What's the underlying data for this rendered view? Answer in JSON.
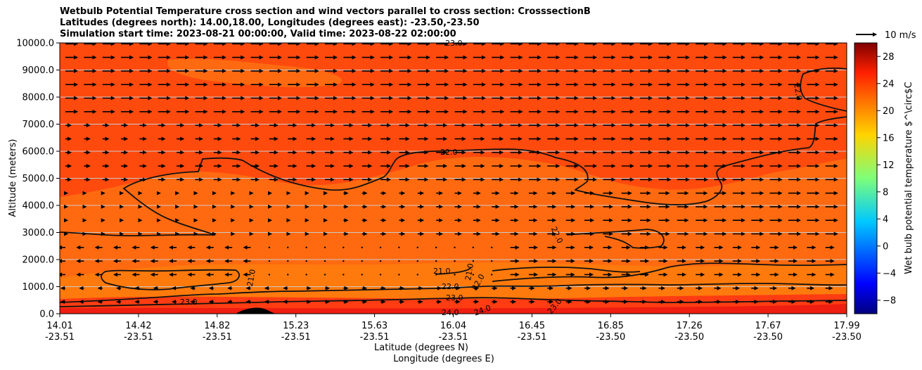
{
  "chart_data": {
    "type": "heatmap",
    "title": [
      "Wetbulb Potential Temperature cross section and wind vectors parallel to cross section: CrosssectionB",
      "Latitudes (degrees north): 14.00,18.00, Longitudes (degrees east): -23.50,-23.50",
      "Simulation start time: 2023-08-21 00:00:00, Valid time: 2023-08-22 02:00:00"
    ],
    "ylabel": "Altitude (meters)",
    "xlabel": "Latitude (degrees N)",
    "xlabel2": "Longitude (degrees E)",
    "ylim": [
      0,
      10000
    ],
    "y_ticks": [
      "0.0",
      "1000.0",
      "2000.0",
      "3000.0",
      "4000.0",
      "5000.0",
      "6000.0",
      "7000.0",
      "8000.0",
      "9000.0",
      "10000.0"
    ],
    "x_ticks": [
      {
        "lat": "14.01",
        "lon": "-23.51"
      },
      {
        "lat": "14.42",
        "lon": "-23.51"
      },
      {
        "lat": "14.82",
        "lon": "-23.51"
      },
      {
        "lat": "15.23",
        "lon": "-23.51"
      },
      {
        "lat": "15.63",
        "lon": "-23.51"
      },
      {
        "lat": "16.04",
        "lon": "-23.51"
      },
      {
        "lat": "16.45",
        "lon": "-23.51"
      },
      {
        "lat": "16.85",
        "lon": "-23.50"
      },
      {
        "lat": "17.26",
        "lon": "-23.50"
      },
      {
        "lat": "17.67",
        "lon": "-23.50"
      },
      {
        "lat": "17.99",
        "lon": "-23.50"
      }
    ],
    "grid": "horizontal",
    "colorbar": {
      "label": "Wet bulb potential temperature $^\\circ$C",
      "colormap": "jet",
      "range": [
        -10,
        30
      ],
      "ticks": [
        "−8",
        "−4",
        "0",
        "4",
        "8",
        "12",
        "16",
        "20",
        "24",
        "28"
      ]
    },
    "wind_key": {
      "label": "10 m/s"
    },
    "contour_labels": [
      "23.0",
      "22.0",
      "22.0",
      "22.0",
      "21.0",
      "21.0",
      "22.0",
      "23.0",
      "24.0",
      "24.0",
      "21.0",
      "23.0",
      "22.0",
      "23.0"
    ],
    "fill_colors": {
      "upper": "#ff4a0e",
      "mid": "#ff6a10",
      "low": "#ff7a0c",
      "near_surface": "#ff3c12",
      "surface": "#ee1e10",
      "terrain": "#000000"
    }
  }
}
